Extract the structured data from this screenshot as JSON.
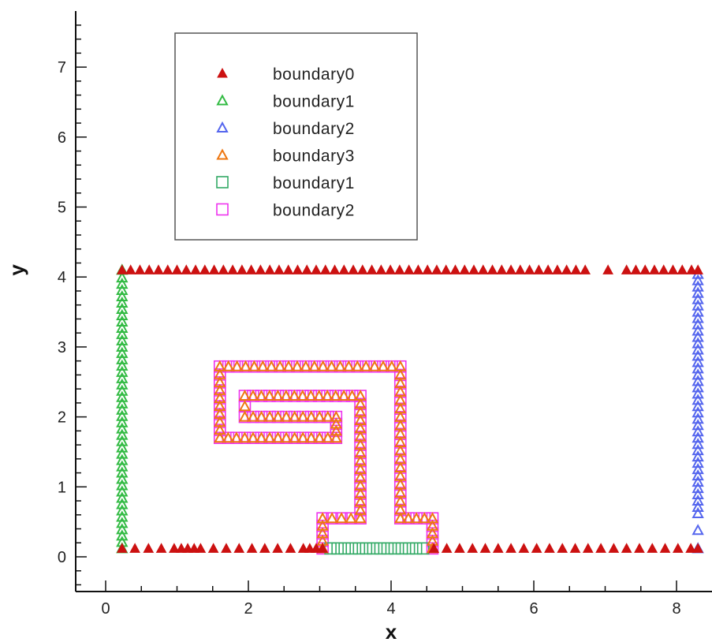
{
  "chart_data": {
    "type": "scatter",
    "title": "",
    "xlabel": "x",
    "ylabel": "y",
    "xlim": [
      -0.4,
      8.6
    ],
    "ylim": [
      -0.5,
      7.75
    ],
    "xticks": [
      0,
      2,
      4,
      6,
      8
    ],
    "yticks": [
      0,
      1,
      2,
      3,
      4,
      5,
      6,
      7
    ],
    "x_minor_step": 0.5,
    "y_minor_step": 0.2,
    "grid": false,
    "legend_position": "top-left",
    "series": [
      {
        "name": "boundary0",
        "marker": "filled-triangle",
        "color": "#cc1111",
        "x": [
          0.23,
          0.41,
          0.6,
          0.78,
          0.96,
          1.06,
          1.15,
          1.24,
          1.33,
          1.51,
          1.69,
          1.87,
          2.05,
          2.23,
          2.41,
          2.59,
          2.77,
          2.86,
          2.95,
          3.04,
          4.6,
          4.78,
          4.96,
          5.14,
          5.32,
          5.5,
          5.68,
          5.86,
          6.04,
          6.22,
          6.4,
          6.58,
          6.76,
          6.94,
          7.12,
          7.3,
          7.48,
          7.66,
          7.84,
          8.02,
          8.2,
          8.3,
          0.23,
          0.35,
          0.48,
          0.61,
          0.74,
          0.87,
          1.0,
          1.13,
          1.26,
          1.39,
          1.52,
          1.65,
          1.78,
          1.91,
          2.04,
          2.17,
          2.3,
          2.43,
          2.56,
          2.69,
          2.82,
          2.95,
          3.08,
          3.21,
          3.34,
          3.47,
          3.6,
          3.73,
          3.86,
          3.99,
          4.12,
          4.25,
          4.38,
          4.51,
          4.64,
          4.77,
          4.9,
          5.03,
          5.16,
          5.29,
          5.42,
          5.55,
          5.68,
          5.81,
          5.94,
          6.07,
          6.2,
          6.33,
          6.46,
          6.59,
          6.72,
          7.04,
          7.3,
          7.43,
          7.56,
          7.69,
          7.82,
          7.95,
          8.08,
          8.21,
          8.3
        ],
        "y": [
          0.12,
          0.12,
          0.12,
          0.12,
          0.12,
          0.12,
          0.12,
          0.12,
          0.12,
          0.12,
          0.12,
          0.12,
          0.12,
          0.12,
          0.12,
          0.12,
          0.12,
          0.12,
          0.12,
          0.12,
          0.12,
          0.12,
          0.12,
          0.12,
          0.12,
          0.12,
          0.12,
          0.12,
          0.12,
          0.12,
          0.12,
          0.12,
          0.12,
          0.12,
          0.12,
          0.12,
          0.12,
          0.12,
          0.12,
          0.12,
          0.12,
          0.12,
          4.1,
          4.1,
          4.1,
          4.1,
          4.1,
          4.1,
          4.1,
          4.1,
          4.1,
          4.1,
          4.1,
          4.1,
          4.1,
          4.1,
          4.1,
          4.1,
          4.1,
          4.1,
          4.1,
          4.1,
          4.1,
          4.1,
          4.1,
          4.1,
          4.1,
          4.1,
          4.1,
          4.1,
          4.1,
          4.1,
          4.1,
          4.1,
          4.1,
          4.1,
          4.1,
          4.1,
          4.1,
          4.1,
          4.1,
          4.1,
          4.1,
          4.1,
          4.1,
          4.1,
          4.1,
          4.1,
          4.1,
          4.1,
          4.1,
          4.1,
          4.1,
          4.1,
          4.1,
          4.1,
          4.1,
          4.1,
          4.1,
          4.1,
          4.1,
          4.1,
          4.1
        ]
      },
      {
        "name": "boundary1",
        "marker": "open-triangle",
        "color": "#33bb44",
        "x": [
          0.23,
          0.23,
          0.23,
          0.23,
          0.23,
          0.23,
          0.23,
          0.23,
          0.23,
          0.23,
          0.23,
          0.23,
          0.23,
          0.23,
          0.23,
          0.23,
          0.23,
          0.23,
          0.23,
          0.23,
          0.23,
          0.23,
          0.23,
          0.23,
          0.23,
          0.23,
          0.23,
          0.23,
          0.23,
          0.23,
          0.23,
          0.23,
          0.23,
          0.23,
          0.23,
          0.23,
          0.23,
          0.23,
          0.23,
          0.23,
          0.23,
          0.23,
          0.23,
          0.23,
          0.23
        ],
        "y": [
          0.12,
          0.21,
          0.3,
          0.39,
          0.48,
          0.57,
          0.66,
          0.75,
          0.84,
          0.93,
          1.02,
          1.11,
          1.2,
          1.29,
          1.38,
          1.47,
          1.56,
          1.65,
          1.74,
          1.83,
          1.92,
          2.01,
          2.1,
          2.19,
          2.28,
          2.37,
          2.46,
          2.55,
          2.64,
          2.73,
          2.82,
          2.91,
          3.0,
          3.09,
          3.18,
          3.27,
          3.36,
          3.45,
          3.54,
          3.63,
          3.72,
          3.81,
          3.9,
          3.99,
          4.1
        ]
      },
      {
        "name": "boundary2",
        "marker": "open-triangle",
        "color": "#5566ee",
        "x": [
          8.3,
          8.3,
          8.3,
          8.3,
          8.3,
          8.3,
          8.3,
          8.3,
          8.3,
          8.3,
          8.3,
          8.3,
          8.3,
          8.3,
          8.3,
          8.3,
          8.3,
          8.3,
          8.3,
          8.3,
          8.3,
          8.3,
          8.3,
          8.3,
          8.3,
          8.3,
          8.3,
          8.3,
          8.3,
          8.3,
          8.3,
          8.3,
          8.3,
          8.3,
          8.3,
          8.3,
          8.3,
          8.3,
          8.3,
          8.3,
          8.3
        ],
        "y": [
          0.12,
          0.38,
          0.62,
          0.71,
          0.8,
          0.89,
          0.98,
          1.07,
          1.16,
          1.25,
          1.34,
          1.43,
          1.52,
          1.61,
          1.7,
          1.79,
          1.88,
          1.97,
          2.06,
          2.15,
          2.24,
          2.33,
          2.42,
          2.51,
          2.6,
          2.69,
          2.78,
          2.87,
          2.96,
          3.05,
          3.14,
          3.23,
          3.32,
          3.41,
          3.5,
          3.59,
          3.68,
          3.77,
          3.86,
          3.95,
          4.04
        ]
      },
      {
        "name": "boundary3",
        "marker": "open-triangle",
        "color": "#ee7711",
        "path": [
          [
            3.04,
            0.12
          ],
          [
            3.04,
            0.55
          ],
          [
            3.57,
            0.55
          ],
          [
            3.57,
            2.3
          ],
          [
            1.95,
            2.3
          ],
          [
            1.95,
            2.0
          ],
          [
            3.23,
            2.0
          ],
          [
            3.23,
            1.7
          ],
          [
            1.6,
            1.7
          ],
          [
            1.6,
            2.72
          ],
          [
            4.13,
            2.72
          ],
          [
            4.13,
            0.55
          ],
          [
            4.58,
            0.55
          ],
          [
            4.58,
            0.12
          ]
        ],
        "spacing": 0.12
      },
      {
        "name": "boundary1",
        "marker": "open-square",
        "color": "#33aa66",
        "x": [
          3.15,
          3.25,
          3.35,
          3.45,
          3.55,
          3.65,
          3.75,
          3.85,
          3.95,
          4.05,
          4.15,
          4.25,
          4.35,
          4.45
        ],
        "y": [
          0.12,
          0.12,
          0.12,
          0.12,
          0.12,
          0.12,
          0.12,
          0.12,
          0.12,
          0.12,
          0.12,
          0.12,
          0.12,
          0.12
        ]
      },
      {
        "name": "boundary2",
        "marker": "open-square",
        "color": "#ee33ee",
        "path": [
          [
            3.04,
            0.12
          ],
          [
            3.04,
            0.55
          ],
          [
            3.57,
            0.55
          ],
          [
            3.57,
            2.3
          ],
          [
            1.95,
            2.3
          ],
          [
            1.95,
            2.0
          ],
          [
            3.23,
            2.0
          ],
          [
            3.23,
            1.7
          ],
          [
            1.6,
            1.7
          ],
          [
            1.6,
            2.72
          ],
          [
            4.13,
            2.72
          ],
          [
            4.13,
            0.55
          ],
          [
            4.58,
            0.55
          ],
          [
            4.58,
            0.12
          ]
        ],
        "spacing": 0.12
      }
    ]
  }
}
